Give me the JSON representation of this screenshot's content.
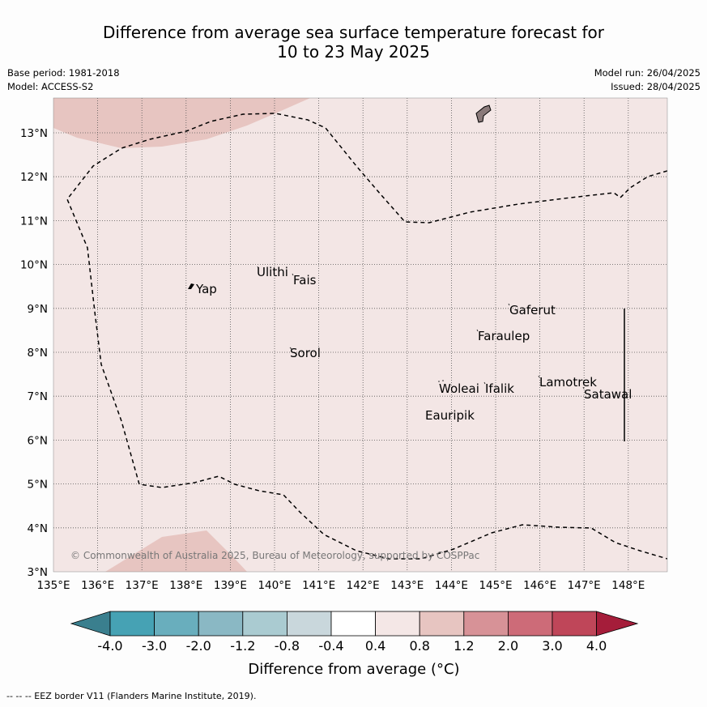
{
  "header": {
    "title_line1": "Difference from average sea surface temperature forecast for",
    "title_line2": "10 to 23 May 2025",
    "base_period": "Base period: 1981-2018",
    "model": "Model: ACCESS-S2",
    "model_run": "Model run: 26/04/2025",
    "issued": "Issued: 28/04/2025"
  },
  "map": {
    "lon_labels": [
      "135°E",
      "136°E",
      "137°E",
      "138°E",
      "139°E",
      "140°E",
      "141°E",
      "142°E",
      "143°E",
      "144°E",
      "145°E",
      "146°E",
      "147°E",
      "148°E"
    ],
    "lat_labels": [
      "3°N",
      "4°N",
      "5°N",
      "6°N",
      "7°N",
      "8°N",
      "9°N",
      "10°N",
      "11°N",
      "12°N",
      "13°N"
    ],
    "places": [
      {
        "name": "Yap"
      },
      {
        "name": "Ulithi"
      },
      {
        "name": "Fais"
      },
      {
        "name": "Gaferut"
      },
      {
        "name": "Faraulep"
      },
      {
        "name": "Sorol"
      },
      {
        "name": "Lamotrek"
      },
      {
        "name": "Satawal"
      },
      {
        "name": "Woleai"
      },
      {
        "name": "Ifalik"
      },
      {
        "name": "Eauripik"
      }
    ],
    "copyright": "© Commonwealth of Australia 2025, Bureau of Meteorology, supported by COSPPac",
    "colors": {
      "background": "#f3e6e5",
      "anomaly_0_8_1_2": "#e7c5c1"
    }
  },
  "colorbar": {
    "tick_labels": [
      "-4.0",
      "-3.0",
      "-2.0",
      "-1.2",
      "-0.8",
      "-0.4",
      "0.4",
      "0.8",
      "1.2",
      "2.0",
      "3.0",
      "4.0"
    ],
    "colors": [
      "#3a7f8e",
      "#46a2b4",
      "#69aebd",
      "#8ab8c4",
      "#aacbd1",
      "#c9d7dc",
      "#ffffff",
      "#f4e7e6",
      "#e7c5c1",
      "#d79297",
      "#cd6b78",
      "#bf4659",
      "#a51d3a"
    ],
    "label": "Difference from average (°C)"
  },
  "footer": {
    "eez_legend": "-- -- -- EEZ border V11 (Flanders Marine Institute, 2019)."
  }
}
